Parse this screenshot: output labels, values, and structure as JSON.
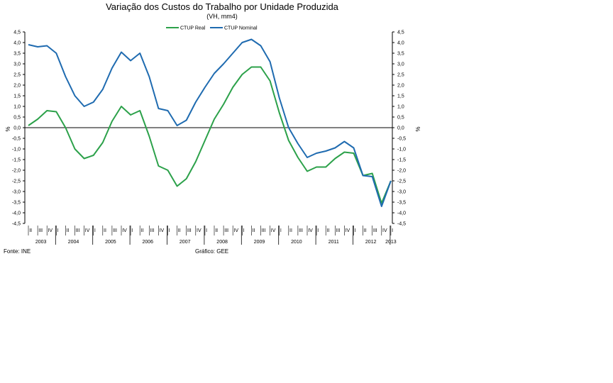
{
  "chart_data": {
    "type": "line",
    "title": "Variação dos Custos do Trabalho por Unidade Produzida",
    "subtitle": "(VH, mm4)",
    "ylabel": "%",
    "ylim": [
      -4.5,
      4.5
    ],
    "yticks": [
      "4,5",
      "4,0",
      "3,5",
      "3,0",
      "2,5",
      "2,0",
      "1,5",
      "1,0",
      "0,5",
      "0,0",
      "-0,5",
      "-1,0",
      "-1,5",
      "-2,0",
      "-2,5",
      "-3,0",
      "-3,5",
      "-4,0",
      "-4,5"
    ],
    "ytick_values": [
      4.5,
      4.0,
      3.5,
      3.0,
      2.5,
      2.0,
      1.5,
      1.0,
      0.5,
      0.0,
      -0.5,
      -1.0,
      -1.5,
      -2.0,
      -2.5,
      -3.0,
      -3.5,
      -4.0,
      -4.5
    ],
    "quarter_labels": [
      "II",
      "III",
      "IV",
      "I",
      "II",
      "III",
      "IV",
      "I",
      "II",
      "III",
      "IV",
      "I",
      "II",
      "III",
      "IV",
      "I",
      "II",
      "III",
      "IV",
      "I",
      "II",
      "III",
      "IV",
      "I",
      "II",
      "III",
      "IV",
      "I",
      "II",
      "III",
      "IV",
      "I",
      "II",
      "III",
      "IV",
      "I",
      "II",
      "III",
      "IV",
      "I"
    ],
    "years": [
      "2003",
      "2004",
      "2005",
      "2006",
      "2007",
      "2008",
      "2009",
      "2010",
      "2011",
      "2012",
      "2013"
    ],
    "series": [
      {
        "name": "CTUP Real",
        "color": "#2ca14a",
        "values": [
          0.1,
          0.4,
          0.8,
          0.75,
          0.0,
          -1.0,
          -1.45,
          -1.3,
          -0.7,
          0.3,
          1.0,
          0.6,
          0.8,
          -0.4,
          -1.8,
          -2.0,
          -2.75,
          -2.4,
          -1.6,
          -0.6,
          0.4,
          1.1,
          1.9,
          2.5,
          2.85,
          2.85,
          2.2,
          0.7,
          -0.6,
          -1.4,
          -2.05,
          -1.85,
          -1.85,
          -1.45,
          -1.15,
          -1.2,
          -2.25,
          -2.15,
          -3.55,
          -2.5
        ]
      },
      {
        "name": "CTUP Nominal",
        "color": "#1f6bb0",
        "values": [
          3.9,
          3.8,
          3.85,
          3.5,
          2.4,
          1.5,
          1.0,
          1.2,
          1.8,
          2.8,
          3.55,
          3.15,
          3.5,
          2.4,
          0.9,
          0.8,
          0.1,
          0.35,
          1.2,
          1.9,
          2.55,
          3.0,
          3.5,
          4.0,
          4.15,
          3.85,
          3.1,
          1.4,
          0.0,
          -0.75,
          -1.4,
          -1.2,
          -1.1,
          -0.95,
          -0.65,
          -0.95,
          -2.25,
          -2.3,
          -3.7,
          -2.5
        ]
      }
    ]
  },
  "footer": {
    "source": "Fonte: INE",
    "credit": "Gráfico: GEE"
  }
}
